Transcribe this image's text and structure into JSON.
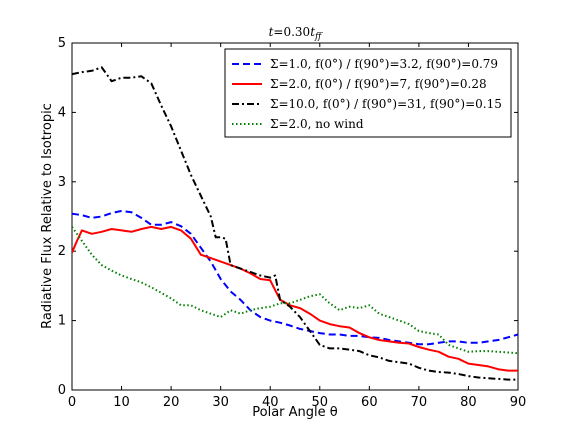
{
  "chart_data": {
    "type": "line",
    "title": "t=0.30t_ff",
    "title_parts": {
      "t": "t",
      "eq": "=0.30",
      "t2": "t",
      "sub": "ff"
    },
    "xlabel": "Polar Angle θ",
    "ylabel": "Radiative Flux Relative to Isotropic",
    "xlim": [
      0,
      90
    ],
    "ylim": [
      0,
      5
    ],
    "xticks": [
      "0",
      "10",
      "20",
      "30",
      "40",
      "50",
      "60",
      "70",
      "80",
      "90"
    ],
    "yticks": [
      "0",
      "1",
      "2",
      "3",
      "4",
      "5"
    ],
    "grid": false,
    "legend_position": "top-right",
    "series": [
      {
        "name": "Σ=1.0,  f(0°) / f(90°)=3.2, f(90°)=0.79",
        "color": "#0000ff",
        "style": "dashed",
        "x": [
          0,
          2,
          4,
          6,
          8,
          10,
          12,
          14,
          16,
          18,
          20,
          22,
          24,
          26,
          28,
          30,
          32,
          34,
          36,
          38,
          40,
          42,
          44,
          46,
          48,
          50,
          52,
          54,
          56,
          58,
          60,
          62,
          64,
          66,
          68,
          70,
          72,
          74,
          76,
          78,
          80,
          82,
          84,
          86,
          88,
          90
        ],
        "y": [
          2.54,
          2.52,
          2.48,
          2.5,
          2.55,
          2.58,
          2.56,
          2.48,
          2.38,
          2.38,
          2.42,
          2.36,
          2.25,
          2.05,
          1.85,
          1.6,
          1.42,
          1.3,
          1.15,
          1.05,
          1.0,
          0.97,
          0.93,
          0.88,
          0.85,
          0.82,
          0.8,
          0.8,
          0.78,
          0.78,
          0.76,
          0.75,
          0.72,
          0.7,
          0.68,
          0.66,
          0.66,
          0.68,
          0.7,
          0.7,
          0.68,
          0.68,
          0.7,
          0.72,
          0.76,
          0.8
        ]
      },
      {
        "name": "Σ=2.0,  f(0°) / f(90°)=7, f(90°)=0.28",
        "color": "#ff0000",
        "style": "solid",
        "x": [
          0,
          1,
          2,
          4,
          6,
          8,
          10,
          12,
          14,
          16,
          18,
          20,
          22,
          24,
          26,
          28,
          30,
          32,
          34,
          36,
          38,
          40,
          42,
          44,
          46,
          48,
          50,
          52,
          54,
          56,
          58,
          60,
          62,
          64,
          66,
          68,
          70,
          72,
          74,
          76,
          78,
          80,
          82,
          84,
          86,
          88,
          90
        ],
        "y": [
          1.98,
          2.15,
          2.3,
          2.25,
          2.28,
          2.32,
          2.3,
          2.28,
          2.32,
          2.35,
          2.32,
          2.35,
          2.3,
          2.18,
          1.95,
          1.9,
          1.85,
          1.8,
          1.75,
          1.68,
          1.6,
          1.58,
          1.3,
          1.22,
          1.18,
          1.1,
          1.0,
          0.95,
          0.92,
          0.9,
          0.82,
          0.76,
          0.72,
          0.7,
          0.68,
          0.67,
          0.62,
          0.58,
          0.55,
          0.48,
          0.45,
          0.38,
          0.36,
          0.34,
          0.3,
          0.28,
          0.28
        ]
      },
      {
        "name": "Σ=10.0,  f(0°) / f(90°)=31, f(90°)=0.15",
        "color": "#000000",
        "style": "dashdot",
        "x": [
          0,
          2,
          4,
          6,
          8,
          10,
          12,
          14,
          16,
          18,
          20,
          22,
          24,
          26,
          28,
          29,
          30,
          31,
          32,
          34,
          36,
          38,
          40,
          41,
          42,
          44,
          46,
          48,
          50,
          52,
          54,
          56,
          58,
          60,
          62,
          64,
          66,
          68,
          70,
          72,
          74,
          76,
          78,
          80,
          82,
          84,
          86,
          88,
          90
        ],
        "y": [
          4.55,
          4.58,
          4.6,
          4.65,
          4.45,
          4.5,
          4.5,
          4.52,
          4.42,
          4.1,
          3.8,
          3.45,
          3.1,
          2.8,
          2.5,
          2.2,
          2.2,
          2.18,
          1.8,
          1.75,
          1.7,
          1.65,
          1.62,
          1.65,
          1.3,
          1.2,
          1.05,
          0.85,
          0.65,
          0.6,
          0.6,
          0.58,
          0.56,
          0.5,
          0.47,
          0.42,
          0.4,
          0.38,
          0.32,
          0.28,
          0.26,
          0.25,
          0.23,
          0.2,
          0.18,
          0.17,
          0.16,
          0.15,
          0.15
        ]
      },
      {
        "name": "Σ=2.0, no wind",
        "color": "#008000",
        "style": "dotted",
        "x": [
          0,
          2,
          4,
          6,
          8,
          10,
          12,
          14,
          16,
          18,
          20,
          22,
          24,
          26,
          28,
          30,
          32,
          34,
          36,
          38,
          40,
          42,
          44,
          46,
          48,
          50,
          52,
          54,
          56,
          58,
          60,
          62,
          64,
          66,
          68,
          70,
          72,
          74,
          76,
          78,
          80,
          82,
          84,
          86,
          88,
          90
        ],
        "y": [
          2.35,
          2.15,
          1.95,
          1.8,
          1.72,
          1.65,
          1.6,
          1.55,
          1.48,
          1.4,
          1.32,
          1.22,
          1.22,
          1.15,
          1.1,
          1.05,
          1.15,
          1.1,
          1.15,
          1.18,
          1.2,
          1.25,
          1.25,
          1.3,
          1.35,
          1.38,
          1.25,
          1.15,
          1.2,
          1.18,
          1.22,
          1.1,
          1.05,
          1.0,
          0.95,
          0.85,
          0.82,
          0.8,
          0.65,
          0.6,
          0.55,
          0.56,
          0.56,
          0.55,
          0.54,
          0.53
        ]
      }
    ]
  }
}
